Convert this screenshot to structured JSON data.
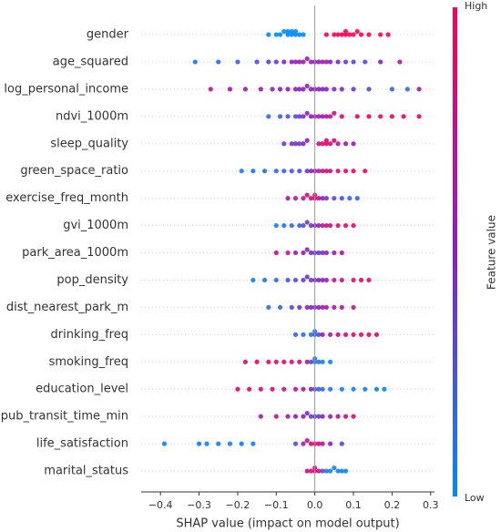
{
  "chart_data": {
    "type": "beeswarm",
    "xlabel": "SHAP value (impact on model output)",
    "xlim": [
      -0.45,
      0.31
    ],
    "xticks": [
      {
        "value": -0.4,
        "label": "−0.4"
      },
      {
        "value": -0.3,
        "label": "−0.3"
      },
      {
        "value": -0.2,
        "label": "−0.2"
      },
      {
        "value": -0.1,
        "label": "−0.1"
      },
      {
        "value": 0,
        "label": "0.0"
      },
      0.1,
      0.2,
      0.3
    ],
    "colorbar": {
      "label": "Feature value",
      "high": "High",
      "low": "Low",
      "colors": [
        "#008bfb",
        "#8a1fc8",
        "#ff0052"
      ]
    },
    "features": [
      {
        "name": "gender",
        "values": [
          -0.12,
          -0.1,
          -0.09,
          -0.08,
          -0.07,
          -0.07,
          -0.06,
          -0.06,
          -0.05,
          -0.05,
          -0.04,
          -0.03,
          0.03,
          0.05,
          0.06,
          0.07,
          0.08,
          0.08,
          0.09,
          0.1,
          0.11,
          0.12,
          0.14,
          0.17,
          0.19
        ],
        "feature_values": [
          0,
          0,
          0,
          0,
          0,
          0,
          0,
          0,
          0,
          0,
          0,
          0,
          1,
          1,
          1,
          1,
          1,
          1,
          1,
          1,
          1,
          1,
          1,
          1,
          1
        ]
      },
      {
        "name": "age_squared",
        "values": [
          -0.31,
          -0.25,
          -0.2,
          -0.15,
          -0.12,
          -0.1,
          -0.08,
          -0.06,
          -0.05,
          -0.04,
          -0.03,
          -0.02,
          -0.01,
          0,
          0.01,
          0.02,
          0.03,
          0.04,
          0.06,
          0.08,
          0.1,
          0.13,
          0.17,
          0.22
        ],
        "feature_values": [
          0.1,
          0.15,
          0.2,
          0.3,
          0.35,
          0.4,
          0.5,
          0.5,
          0.55,
          0.6,
          0.6,
          0.6,
          0.55,
          0.5,
          0.55,
          0.6,
          0.6,
          0.5,
          0.45,
          0.4,
          0.35,
          0.3,
          0.5,
          0.7
        ]
      },
      {
        "name": "log_personal_income",
        "values": [
          -0.27,
          -0.22,
          -0.18,
          -0.14,
          -0.11,
          -0.09,
          -0.07,
          -0.05,
          -0.04,
          -0.03,
          -0.02,
          -0.01,
          0,
          0.01,
          0.02,
          0.03,
          0.05,
          0.07,
          0.1,
          0.14,
          0.2,
          0.24,
          0.27
        ],
        "feature_values": [
          0.7,
          0.6,
          0.6,
          0.55,
          0.5,
          0.5,
          0.55,
          0.5,
          0.5,
          0.55,
          0.5,
          0.5,
          0.5,
          0.55,
          0.5,
          0.5,
          0.45,
          0.45,
          0.4,
          0.3,
          0.2,
          0.15,
          0.6
        ]
      },
      {
        "name": "ndvi_1000m",
        "values": [
          -0.12,
          -0.09,
          -0.07,
          -0.05,
          -0.04,
          -0.03,
          -0.02,
          -0.01,
          0,
          0.01,
          0.02,
          0.03,
          0.04,
          0.05,
          0.07,
          0.11,
          0.14,
          0.17,
          0.2,
          0.23,
          0.27
        ],
        "feature_values": [
          0.15,
          0.2,
          0.25,
          0.3,
          0.4,
          0.45,
          0.5,
          0.5,
          0.55,
          0.6,
          0.6,
          0.65,
          0.7,
          0.75,
          0.8,
          0.85,
          0.9,
          0.9,
          0.85,
          0.9,
          0.9
        ]
      },
      {
        "name": "sleep_quality",
        "values": [
          -0.08,
          -0.06,
          -0.05,
          -0.04,
          -0.03,
          -0.02,
          0.01,
          0.02,
          0.03,
          0.03,
          0.04,
          0.05,
          0.06,
          0.08,
          0.1
        ],
        "feature_values": [
          0.4,
          0.4,
          0.45,
          0.4,
          0.45,
          0.5,
          0.8,
          0.85,
          0.9,
          0.9,
          0.85,
          0.8,
          0.7,
          0.6,
          0.6
        ]
      },
      {
        "name": "green_space_ratio",
        "values": [
          -0.19,
          -0.16,
          -0.13,
          -0.1,
          -0.08,
          -0.06,
          -0.04,
          -0.02,
          -0.01,
          0,
          0.01,
          0.02,
          0.03,
          0.04,
          0.06,
          0.08,
          0.1,
          0.13
        ],
        "feature_values": [
          0.05,
          0.1,
          0.1,
          0.15,
          0.2,
          0.25,
          0.3,
          0.4,
          0.5,
          0.6,
          0.7,
          0.75,
          0.8,
          0.85,
          0.85,
          0.9,
          0.9,
          0.9
        ]
      },
      {
        "name": "exercise_freq_month",
        "values": [
          -0.07,
          -0.05,
          -0.03,
          -0.02,
          -0.01,
          0,
          0,
          0.01,
          0.02,
          0.03,
          0.05,
          0.07,
          0.09,
          0.11
        ],
        "feature_values": [
          0.6,
          0.7,
          0.8,
          0.85,
          0.9,
          0.9,
          0.8,
          0.7,
          0.5,
          0.4,
          0.3,
          0.25,
          0.2,
          0.15
        ]
      },
      {
        "name": "gvi_1000m",
        "values": [
          -0.1,
          -0.08,
          -0.06,
          -0.04,
          -0.03,
          -0.02,
          -0.01,
          0,
          0.01,
          0.02,
          0.03,
          0.04,
          0.06,
          0.08,
          0.1
        ],
        "feature_values": [
          0.05,
          0.1,
          0.15,
          0.2,
          0.3,
          0.35,
          0.4,
          0.5,
          0.6,
          0.7,
          0.8,
          0.85,
          0.85,
          0.9,
          0.9
        ]
      },
      {
        "name": "park_area_1000m",
        "values": [
          -0.1,
          -0.07,
          -0.05,
          -0.03,
          -0.02,
          -0.01,
          0,
          0.01,
          0.02,
          0.03,
          0.05,
          0.07
        ],
        "feature_values": [
          0.8,
          0.7,
          0.6,
          0.55,
          0.5,
          0.45,
          0.4,
          0.4,
          0.45,
          0.5,
          0.6,
          0.7
        ]
      },
      {
        "name": "pop_density",
        "values": [
          -0.16,
          -0.13,
          -0.1,
          -0.07,
          -0.05,
          -0.03,
          -0.02,
          -0.01,
          0,
          0.01,
          0.02,
          0.03,
          0.05,
          0.07,
          0.1,
          0.12,
          0.14
        ],
        "feature_values": [
          0.05,
          0.1,
          0.15,
          0.25,
          0.3,
          0.35,
          0.4,
          0.4,
          0.45,
          0.5,
          0.55,
          0.6,
          0.7,
          0.75,
          0.85,
          0.9,
          0.9
        ]
      },
      {
        "name": "dist_nearest_park_m",
        "values": [
          -0.12,
          -0.09,
          -0.06,
          -0.04,
          -0.02,
          -0.01,
          0,
          0.01,
          0.02,
          0.03,
          0.05,
          0.07,
          0.1
        ],
        "feature_values": [
          0.15,
          0.2,
          0.3,
          0.4,
          0.45,
          0.5,
          0.5,
          0.55,
          0.6,
          0.6,
          0.65,
          0.7,
          0.7
        ]
      },
      {
        "name": "drinking_freq",
        "values": [
          -0.05,
          -0.03,
          -0.01,
          0,
          0,
          0.01,
          0.02,
          0.04,
          0.06,
          0.08,
          0.1,
          0.12,
          0.14,
          0.16
        ],
        "feature_values": [
          0.2,
          0.15,
          0.1,
          0.15,
          0.2,
          0.3,
          0.5,
          0.7,
          0.8,
          0.85,
          0.9,
          0.9,
          0.85,
          0.9
        ]
      },
      {
        "name": "smoking_freq",
        "values": [
          -0.18,
          -0.15,
          -0.12,
          -0.1,
          -0.08,
          -0.06,
          -0.04,
          -0.02,
          -0.01,
          0,
          0,
          0.01,
          0.02,
          0.04
        ],
        "feature_values": [
          0.8,
          0.9,
          0.9,
          0.85,
          0.9,
          0.9,
          0.85,
          0.7,
          0.3,
          0.15,
          0.1,
          0.1,
          0.05,
          0.05
        ]
      },
      {
        "name": "education_level",
        "values": [
          -0.2,
          -0.17,
          -0.14,
          -0.11,
          -0.08,
          -0.05,
          -0.03,
          -0.01,
          0,
          0.01,
          0.02,
          0.04,
          0.07,
          0.1,
          0.13,
          0.16,
          0.18
        ],
        "feature_values": [
          0.9,
          0.9,
          0.85,
          0.8,
          0.8,
          0.75,
          0.7,
          0.5,
          0.3,
          0.2,
          0.15,
          0.1,
          0.05,
          0.05,
          0.05,
          0.05,
          0.05
        ]
      },
      {
        "name": "pub_transit_time_min",
        "values": [
          -0.14,
          -0.1,
          -0.07,
          -0.05,
          -0.03,
          -0.02,
          -0.01,
          0,
          0.01,
          0.02,
          0.04,
          0.06,
          0.08,
          0.1
        ],
        "feature_values": [
          0.6,
          0.7,
          0.6,
          0.55,
          0.5,
          0.45,
          0.4,
          0.35,
          0.4,
          0.5,
          0.6,
          0.7,
          0.8,
          0.85
        ]
      },
      {
        "name": "life_satisfaction",
        "values": [
          -0.39,
          -0.3,
          -0.28,
          -0.25,
          -0.22,
          -0.19,
          -0.16,
          -0.05,
          -0.03,
          -0.02,
          -0.01,
          0,
          0.01,
          0.02,
          0.04,
          0.07
        ],
        "feature_values": [
          0.05,
          0.05,
          0.05,
          0.05,
          0.05,
          0.05,
          0.05,
          0.3,
          0.6,
          0.8,
          0.9,
          0.9,
          0.85,
          0.7,
          0.5,
          0.3
        ]
      },
      {
        "name": "marital_status",
        "values": [
          -0.02,
          -0.01,
          0,
          0,
          0.01,
          0.02,
          0.03,
          0.04,
          0.05,
          0.06,
          0.07,
          0.08
        ],
        "feature_values": [
          0.9,
          0.9,
          0.9,
          0.85,
          0.8,
          0.3,
          0.1,
          0.05,
          0.05,
          0.05,
          0.05,
          0.05
        ]
      }
    ]
  }
}
